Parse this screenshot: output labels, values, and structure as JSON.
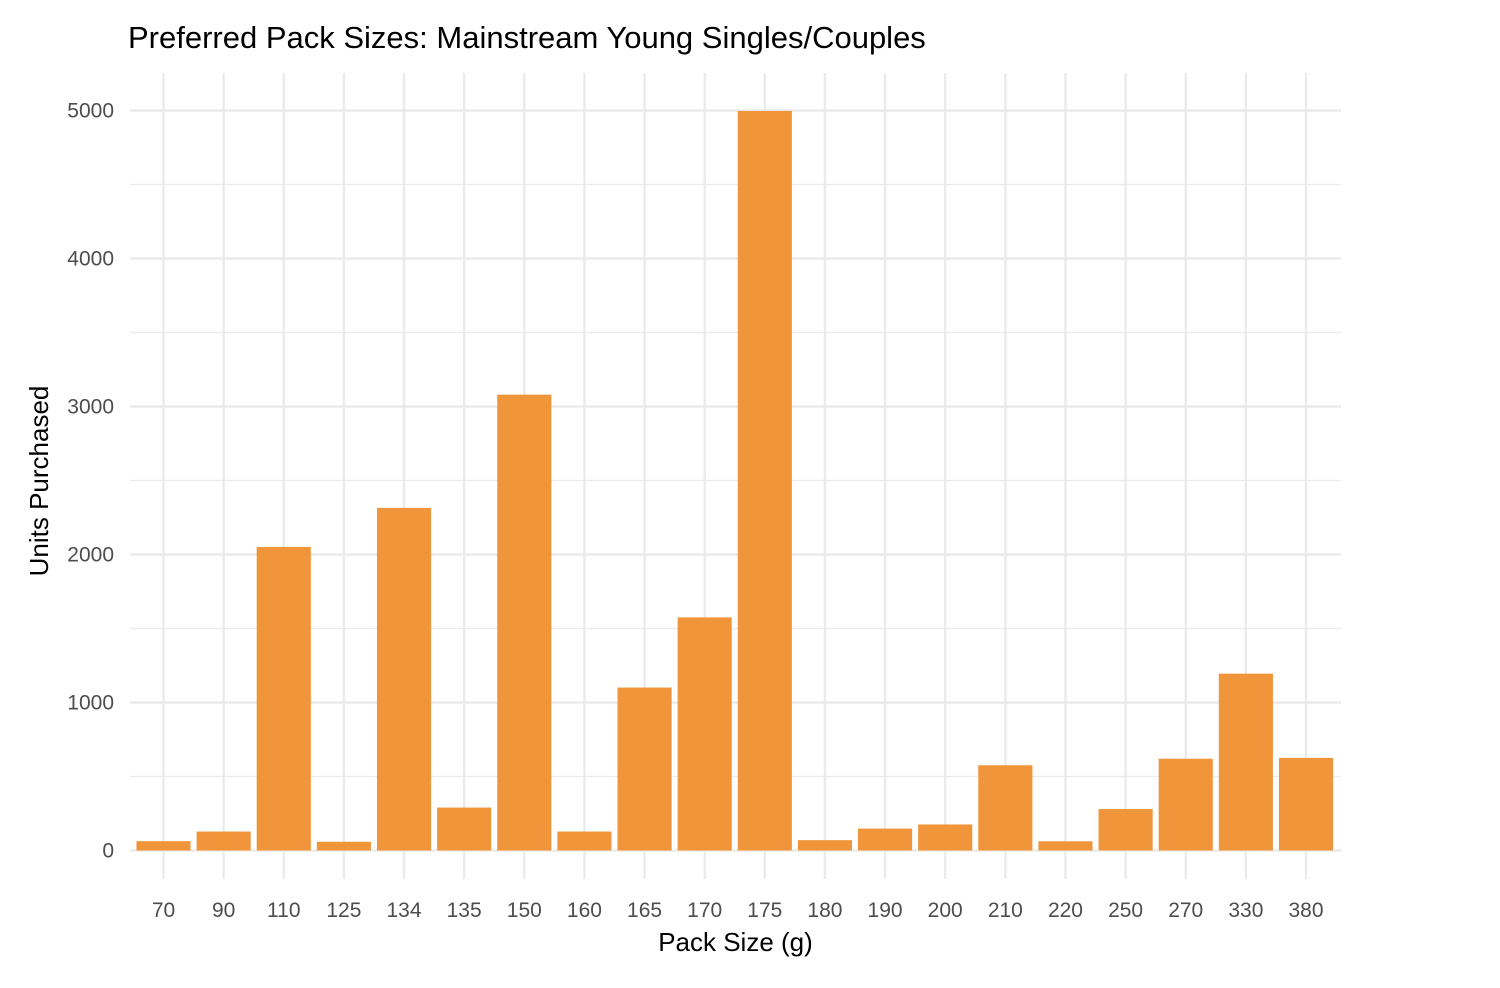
{
  "chart_data": {
    "type": "bar",
    "title": "Preferred Pack Sizes: Mainstream Young Singles/Couples",
    "xlabel": "Pack Size (g)",
    "ylabel": "Units Purchased",
    "categories": [
      "70",
      "90",
      "110",
      "125",
      "134",
      "135",
      "150",
      "160",
      "165",
      "170",
      "175",
      "180",
      "190",
      "200",
      "210",
      "220",
      "250",
      "270",
      "330",
      "380"
    ],
    "values": [
      63,
      128,
      2051,
      59,
      2315,
      290,
      3080,
      128,
      1101,
      1575,
      4997,
      70,
      148,
      176,
      576,
      62,
      280,
      620,
      1195,
      626
    ],
    "ylim": [
      0,
      5250
    ],
    "yticks": [
      0,
      1000,
      2000,
      3000,
      4000,
      5000
    ],
    "bar_color": "#f0953a",
    "grid": true,
    "legend": "none"
  }
}
